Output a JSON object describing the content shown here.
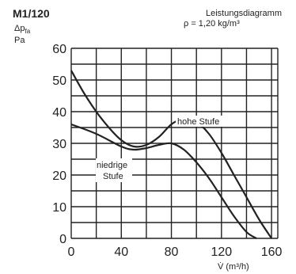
{
  "header": {
    "model": "M1/120",
    "title": "Leistungsdiagramm",
    "density": "ρ = 1,20 kg/m³"
  },
  "chart_data": {
    "type": "line",
    "title": "Leistungsdiagramm",
    "subtitle": "ρ = 1,20 kg/m³",
    "ylabel_line1": "Δp",
    "ylabel_line1_sub": "fa",
    "ylabel_line2": "Pa",
    "xlabel": "V̇ (m³/h)",
    "xlim": [
      0,
      165
    ],
    "ylim": [
      0,
      60
    ],
    "xticks": [
      0,
      40,
      80,
      120,
      160
    ],
    "yticks": [
      0,
      10,
      20,
      30,
      40,
      50,
      60
    ],
    "grid": true,
    "series": [
      {
        "name": "hohe Stufe",
        "x": [
          0,
          10,
          20,
          30,
          40,
          50,
          60,
          70,
          80,
          90,
          95,
          100,
          110,
          120,
          130,
          140,
          150,
          160
        ],
        "y": [
          53,
          46,
          40,
          35,
          31,
          29,
          29.5,
          32,
          36,
          38,
          38,
          37,
          33,
          27,
          20,
          13,
          6,
          0
        ]
      },
      {
        "name": "niedrige Stufe",
        "x": [
          0,
          20,
          40,
          50,
          60,
          70,
          80,
          90,
          100,
          110,
          120,
          130,
          140,
          148
        ],
        "y": [
          36,
          33,
          29,
          28,
          28.5,
          29.5,
          30,
          28,
          24,
          19,
          13,
          7,
          2,
          0
        ]
      }
    ],
    "annotations": [
      "hohe Stufe",
      "niedrige",
      "Stufe"
    ]
  }
}
